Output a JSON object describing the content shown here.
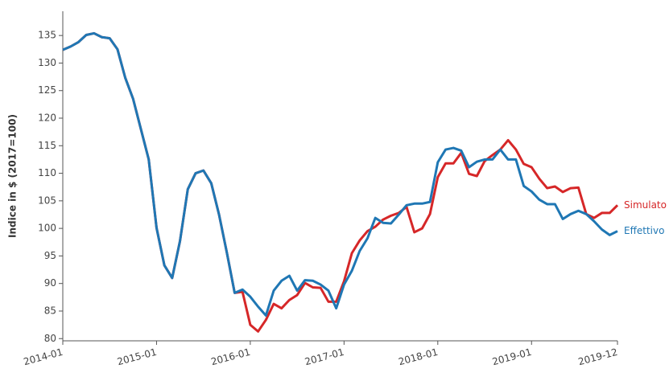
{
  "chart_data": {
    "type": "line",
    "y_label": "Indice in $ (2017=100)",
    "x": [
      "2014-01",
      "2014-02",
      "2014-03",
      "2014-04",
      "2014-05",
      "2014-06",
      "2014-07",
      "2014-08",
      "2014-09",
      "2014-10",
      "2014-11",
      "2014-12",
      "2015-01",
      "2015-02",
      "2015-03",
      "2015-04",
      "2015-05",
      "2015-06",
      "2015-07",
      "2015-08",
      "2015-09",
      "2015-10",
      "2015-11",
      "2015-12",
      "2016-01",
      "2016-02",
      "2016-03",
      "2016-04",
      "2016-05",
      "2016-06",
      "2016-07",
      "2016-08",
      "2016-09",
      "2016-10",
      "2016-11",
      "2016-12",
      "2017-01",
      "2017-02",
      "2017-03",
      "2017-04",
      "2017-05",
      "2017-06",
      "2017-07",
      "2017-08",
      "2017-09",
      "2017-10",
      "2017-11",
      "2017-12",
      "2018-01",
      "2018-02",
      "2018-03",
      "2018-04",
      "2018-05",
      "2018-06",
      "2018-07",
      "2018-08",
      "2018-09",
      "2018-10",
      "2018-11",
      "2018-12",
      "2019-01",
      "2019-02",
      "2019-03",
      "2019-04",
      "2019-05",
      "2019-06",
      "2019-07",
      "2019-08",
      "2019-09",
      "2019-10",
      "2019-11",
      "2019-12"
    ],
    "series": [
      {
        "name": "Simulato",
        "color": "#d62728",
        "values": [
          132.4,
          133,
          133.8,
          135.1,
          135.4,
          134.7,
          134.5,
          132.5,
          127.3,
          123.5,
          118,
          112.5,
          100.1,
          93.3,
          91,
          97.7,
          107.1,
          110,
          110.5,
          108.2,
          102.5,
          95.6,
          88.3,
          88.5,
          82.5,
          81.3,
          83.4,
          86.3,
          85.5,
          87,
          87.9,
          90.1,
          89.3,
          89.2,
          86.7,
          86.7,
          90.4,
          95.5,
          97.8,
          99.5,
          100.3,
          101.6,
          102.3,
          102.8,
          103.9,
          99.3,
          100,
          102.6,
          109.3,
          111.8,
          111.8,
          113.7,
          109.9,
          109.5,
          112.2,
          113.3,
          114.3,
          116,
          114.3,
          111.7,
          111.1,
          109,
          107.3,
          107.6,
          106.6,
          107.3,
          107.4,
          102.6,
          101.9,
          102.8,
          102.8,
          104.2
        ]
      },
      {
        "name": "Effettivo",
        "color": "#1f77b4",
        "values": [
          132.4,
          133,
          133.8,
          135.1,
          135.4,
          134.7,
          134.5,
          132.5,
          127.3,
          123.5,
          118,
          112.5,
          100.1,
          93.3,
          91,
          97.7,
          107.1,
          110,
          110.5,
          108.2,
          102.5,
          95.6,
          88.3,
          88.9,
          87.6,
          85.8,
          84.2,
          88.7,
          90.5,
          91.4,
          88.7,
          90.6,
          90.5,
          89.8,
          88.7,
          85.5,
          89.8,
          92.3,
          95.9,
          98.2,
          101.9,
          101,
          100.9,
          102.5,
          104.2,
          104.5,
          104.5,
          104.8,
          112,
          114.3,
          114.6,
          114.1,
          111.1,
          112.1,
          112.5,
          112.5,
          114.3,
          112.5,
          112.5,
          107.7,
          106.7,
          105.2,
          104.4,
          104.4,
          101.7,
          102.6,
          103.2,
          102.6,
          101.3,
          99.8,
          98.8,
          99.5
        ]
      }
    ],
    "xticks": [
      "2014-01",
      "2015-01",
      "2016-01",
      "2017-01",
      "2018-01",
      "2019-01",
      "2019-12"
    ],
    "ylim": [
      79.6,
      139.4
    ],
    "yticks": [
      80,
      85,
      90,
      95,
      100,
      105,
      110,
      115,
      120,
      125,
      130,
      135
    ],
    "grid": false
  }
}
